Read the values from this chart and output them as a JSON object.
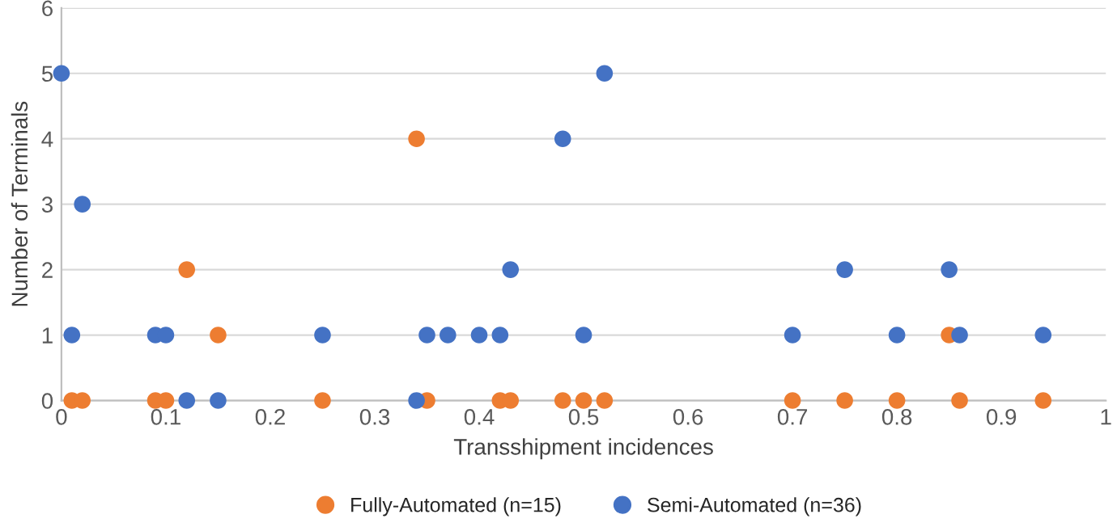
{
  "chart_data": {
    "type": "scatter",
    "xlabel": "Transshipment incidences",
    "ylabel": "Number of Terminals",
    "xlim": [
      0,
      1
    ],
    "ylim": [
      0,
      6
    ],
    "xticks": [
      0,
      0.1,
      0.2,
      0.3,
      0.4,
      0.5,
      0.6,
      0.7,
      0.8,
      0.9,
      1
    ],
    "yticks": [
      0,
      1,
      2,
      3,
      4,
      5,
      6
    ],
    "grid": "y",
    "legend": "bottom",
    "marker": "circle",
    "series": [
      {
        "name": "Fully-Automated (n=15)",
        "color": "#ed7d31",
        "x": [
          0.01,
          0.02,
          0.09,
          0.1,
          0.12,
          0.15,
          0.25,
          0.34,
          0.35,
          0.42,
          0.43,
          0.48,
          0.5,
          0.52,
          0.7,
          0.75,
          0.8,
          0.85,
          0.86,
          0.94
        ],
        "values": [
          0,
          0,
          0,
          0,
          2,
          1,
          0,
          4,
          0,
          0,
          0,
          0,
          0,
          0,
          0,
          0,
          0,
          1,
          0,
          0
        ]
      },
      {
        "name": "Semi-Automated (n=36)",
        "color": "#4472c4",
        "x": [
          0,
          0.01,
          0.02,
          0.09,
          0.1,
          0.12,
          0.15,
          0.25,
          0.34,
          0.35,
          0.37,
          0.4,
          0.42,
          0.43,
          0.48,
          0.5,
          0.52,
          0.7,
          0.75,
          0.8,
          0.85,
          0.86,
          0.94
        ],
        "values": [
          5,
          1,
          3,
          1,
          1,
          0,
          0,
          1,
          0,
          1,
          1,
          1,
          1,
          2,
          4,
          1,
          5,
          1,
          2,
          1,
          2,
          1,
          1
        ]
      }
    ]
  }
}
